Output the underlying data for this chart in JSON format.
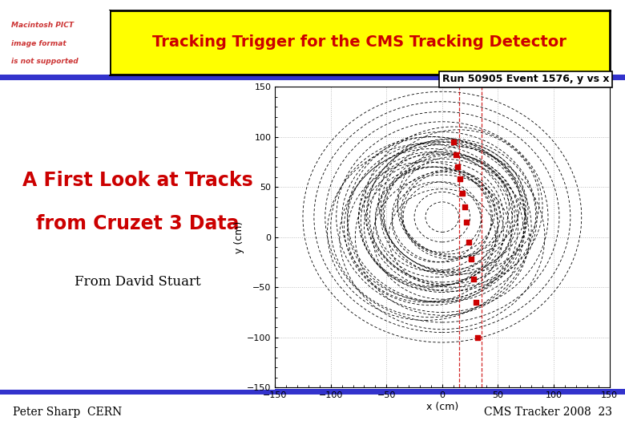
{
  "title": "Tracking Trigger for the CMS Tracking Detector",
  "title_color": "#cc0000",
  "title_bg": "#ffff00",
  "title_border": "#000000",
  "left_text_line1": "A First Look at Tracks",
  "left_text_line2": "from Cruzet 3 Data",
  "left_text_color": "#cc0000",
  "from_text": "From David Stuart",
  "from_text_color": "#000000",
  "footer_left": "Peter Sharp  CERN",
  "footer_right": "CMS Tracker 2008  23",
  "footer_color": "#000000",
  "plot_title": "Run 50905 Event 1576, y vs x",
  "xlabel": "x (cm)",
  "ylabel": "y (cm)",
  "xlim": [
    -150,
    150
  ],
  "ylim": [
    -150,
    150
  ],
  "xticks": [
    -150,
    -100,
    -50,
    0,
    50,
    100,
    150
  ],
  "yticks": [
    -150,
    -100,
    -50,
    0,
    50,
    100,
    150
  ],
  "slide_bg": "#ffffff",
  "blue_bar_color": "#3333cc",
  "macintosh_text_color": "#cc3333",
  "macintosh_lines": [
    "Macintosh PICT",
    "image format",
    "is not supported"
  ],
  "red_dots_x": [
    10,
    12,
    14,
    16,
    18,
    20,
    22,
    24,
    26,
    28,
    30,
    32
  ],
  "red_dots_y": [
    95,
    82,
    70,
    58,
    44,
    30,
    15,
    -5,
    -22,
    -42,
    -65,
    -100
  ],
  "track_line_x1": 15,
  "track_line_x2": 35,
  "circles": [
    [
      0,
      20,
      15
    ],
    [
      0,
      20,
      25
    ],
    [
      0,
      20,
      35
    ],
    [
      0,
      20,
      45
    ],
    [
      0,
      20,
      55
    ],
    [
      0,
      20,
      65
    ],
    [
      0,
      20,
      75
    ],
    [
      0,
      20,
      85
    ],
    [
      0,
      20,
      95
    ],
    [
      0,
      20,
      105
    ],
    [
      0,
      20,
      115
    ],
    [
      0,
      20,
      125
    ],
    [
      -5,
      15,
      40
    ],
    [
      -5,
      15,
      55
    ],
    [
      -5,
      15,
      68
    ],
    [
      -5,
      15,
      80
    ],
    [
      5,
      25,
      42
    ],
    [
      5,
      25,
      58
    ],
    [
      5,
      25,
      72
    ],
    [
      -10,
      10,
      60
    ],
    [
      -10,
      10,
      78
    ],
    [
      -10,
      10,
      90
    ],
    [
      10,
      30,
      50
    ],
    [
      10,
      30,
      65
    ],
    [
      10,
      30,
      80
    ],
    [
      -15,
      5,
      70
    ],
    [
      -15,
      5,
      88
    ],
    [
      15,
      35,
      55
    ],
    [
      15,
      35,
      72
    ],
    [
      0,
      0,
      48
    ],
    [
      0,
      0,
      62
    ],
    [
      0,
      0,
      78
    ],
    [
      0,
      0,
      92
    ],
    [
      -8,
      18,
      52
    ],
    [
      -8,
      18,
      67
    ],
    [
      -8,
      18,
      82
    ],
    [
      8,
      22,
      44
    ],
    [
      8,
      22,
      60
    ],
    [
      8,
      22,
      76
    ]
  ]
}
